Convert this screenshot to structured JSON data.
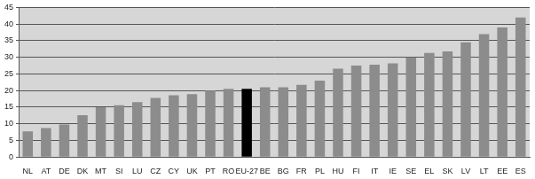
{
  "chart_data": {
    "type": "bar",
    "categories": [
      "NL",
      "AT",
      "DE",
      "DK",
      "MT",
      "SI",
      "LU",
      "CZ",
      "CY",
      "UK",
      "PT",
      "RO",
      "EU-27",
      "BE",
      "BG",
      "FR",
      "PL",
      "HU",
      "FI",
      "IT",
      "IE",
      "SE",
      "EL",
      "SK",
      "LV",
      "LT",
      "EE",
      "ES"
    ],
    "values": [
      7.7,
      8.7,
      9.8,
      12.6,
      15.0,
      15.6,
      16.5,
      17.8,
      18.6,
      18.9,
      20.0,
      20.5,
      20.5,
      21.0,
      21.0,
      21.7,
      23.0,
      26.6,
      27.5,
      27.8,
      28.2,
      30.0,
      31.3,
      31.8,
      34.5,
      37.0,
      39.0,
      42.0
    ],
    "colors": [
      "#8c8c8c",
      "#8c8c8c",
      "#8c8c8c",
      "#8c8c8c",
      "#8c8c8c",
      "#8c8c8c",
      "#8c8c8c",
      "#8c8c8c",
      "#8c8c8c",
      "#8c8c8c",
      "#8c8c8c",
      "#8c8c8c",
      "#000000",
      "#8c8c8c",
      "#8c8c8c",
      "#8c8c8c",
      "#8c8c8c",
      "#8c8c8c",
      "#8c8c8c",
      "#8c8c8c",
      "#8c8c8c",
      "#8c8c8c",
      "#8c8c8c",
      "#8c8c8c",
      "#8c8c8c",
      "#8c8c8c",
      "#8c8c8c",
      "#8c8c8c"
    ],
    "ylim": [
      0,
      45
    ],
    "yticks": [
      0,
      5,
      10,
      15,
      20,
      25,
      30,
      35,
      40,
      45
    ],
    "grid": true
  }
}
